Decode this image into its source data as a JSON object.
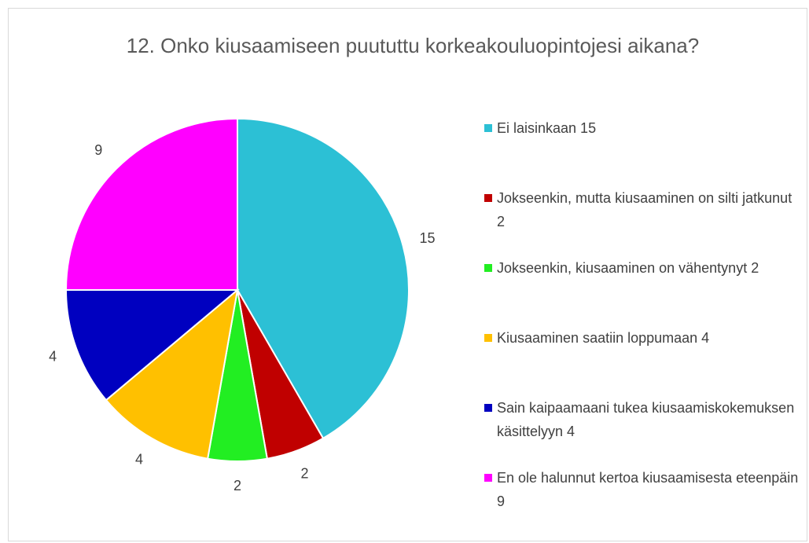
{
  "chart_data": {
    "type": "pie",
    "title": "12. Onko kiusaamiseen puututtu korkeakouluopintojesi aikana?",
    "categories": [
      "Ei laisinkaan 15",
      "Jokseenkin, mutta kiusaaminen on silti jatkunut 2",
      "Jokseenkin, kiusaaminen on vähentynyt 2",
      "Kiusaaminen saatiin loppumaan 4",
      "Sain kaipaamaani tukea kiusaamiskokemuksen käsittelyyn 4",
      "En ole halunnut kertoa kiusaamisesta eteenpäin 9"
    ],
    "values": [
      15,
      2,
      2,
      4,
      4,
      9
    ],
    "colors": [
      "#2cc0d5",
      "#c00000",
      "#22ee22",
      "#ffc000",
      "#0000c0",
      "#ff00ff"
    ],
    "legend": "right"
  }
}
